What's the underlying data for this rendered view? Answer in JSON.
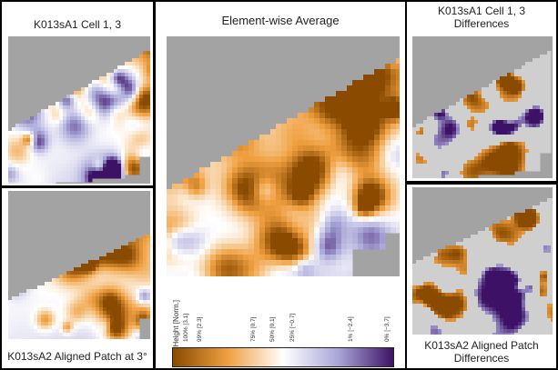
{
  "panels": {
    "top_left": {
      "title": "K013sA1 Cell 1, 3"
    },
    "bottom_left": {
      "title": "K013sA2 Aligned Patch at 3°"
    },
    "center": {
      "title": "Element-wise Average"
    },
    "top_right": {
      "title_line1": "K013sA1 Cell 1, 3",
      "title_line2": "Differences"
    },
    "bottom_right": {
      "title_line1": "K013sA2 Aligned Patch",
      "title_line2": "Differences"
    }
  },
  "colorbar": {
    "title": "Rel. Height [Norm.]",
    "ticks": [
      "100% [3.1]",
      "99% [2.3]",
      "75% [0.7]",
      "50% [0.1]",
      "25% [−0.7]",
      "1% [−2.4]",
      "0% [−3.7]"
    ],
    "colors": {
      "high": "#8a4a00",
      "mid_high": "#f0a040",
      "mid": "#ffffff",
      "mid_low": "#a9a6d8",
      "low": "#3d1266"
    }
  },
  "colors": {
    "background_mask": "#a3a3a3",
    "diff_base": "#cfcfcf"
  }
}
